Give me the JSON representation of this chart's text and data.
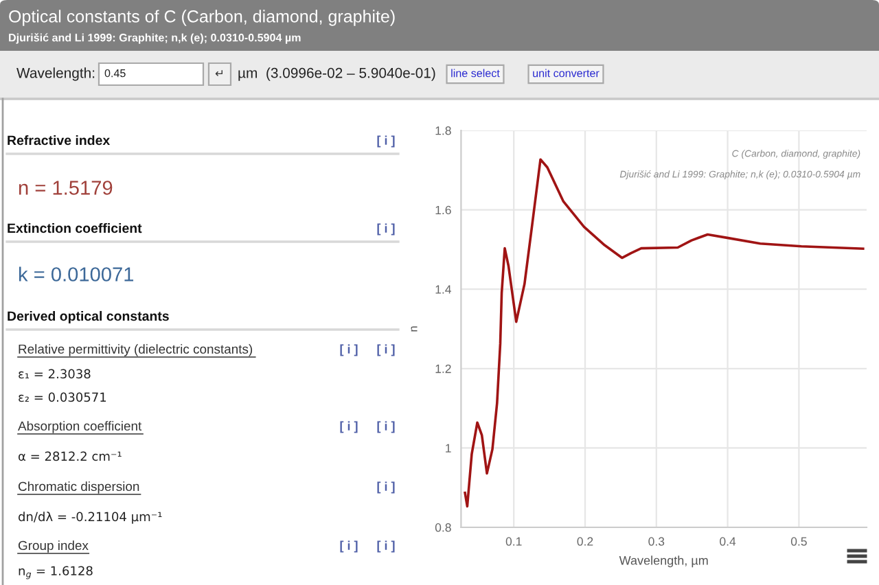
{
  "chart_data": [
    {
      "type": "other",
      "title": "Optical constants of C (Carbon, diamond, graphite)",
      "subtitle": "Djurišić and Li 1999: Graphite; n,k (e); 0.0310-0.5904 µm",
      "annotations": [
        "Wavelength:",
        "0.45",
        "↵",
        "µm  (3.0996e-02 – 5.9040e-01)",
        "line select",
        "unit converter",
        "Refractive index",
        "[ i ]",
        "n = 1.5179",
        "Extinction coefficient",
        "[ i ]",
        "k = 0.010071",
        "Derived optical constants",
        "Relative permittivity (dielectric constants)",
        "[ i ]",
        "[ i ]",
        "ε₁ = 2.3038",
        "ε₂ = 0.030571",
        "Absorption coefficient",
        "[ i ]",
        "[ i ]",
        "α = 2812.2 cm⁻¹",
        "Chromatic dispersion",
        "[ i ]",
        "dn/dλ = -0.21104 µm⁻¹",
        "Group index",
        "[ i ]",
        "[ i ]",
        "n$_{g}$ = 1.6128"
      ]
    },
    {
      "type": "line",
      "xlabel": "Wavelength, µm",
      "ylabel": "n",
      "annotations": [
        "C (Carbon, diamond, graphite)",
        "Djurišić and Li 1999: Graphite; n,k (e); 0.0310-0.5904 µm"
      ],
      "xlim": [
        0.026,
        0.595
      ],
      "ylim": [
        0.8,
        1.8
      ],
      "xticks": [
        0.1,
        0.2,
        0.3,
        0.4,
        0.5
      ],
      "yticks": [
        0.8,
        1,
        1.2,
        1.4,
        1.6,
        1.8
      ],
      "grid": true,
      "series": [
        {
          "color": "#a01414",
          "x": [
            0.0315,
            0.0347,
            0.041,
            0.0488,
            0.0552,
            0.0623,
            0.07,
            0.0765,
            0.081,
            0.083,
            0.0873,
            0.0925,
            0.1034,
            0.115,
            0.1258,
            0.1374,
            0.147,
            0.1696,
            0.1985,
            0.2274,
            0.2518,
            0.2645,
            0.2788,
            0.33,
            0.3493,
            0.3719,
            0.4008,
            0.4457,
            0.5035,
            0.59
          ],
          "values": [
            0.887,
            0.853,
            0.985,
            1.064,
            1.032,
            0.936,
            0.997,
            1.113,
            1.263,
            1.39,
            1.503,
            1.459,
            1.318,
            1.413,
            1.563,
            1.727,
            1.707,
            1.621,
            1.557,
            1.511,
            1.479,
            1.491,
            1.503,
            1.505,
            1.523,
            1.538,
            1.529,
            1.515,
            1.508,
            1.502
          ]
        }
      ]
    }
  ]
}
